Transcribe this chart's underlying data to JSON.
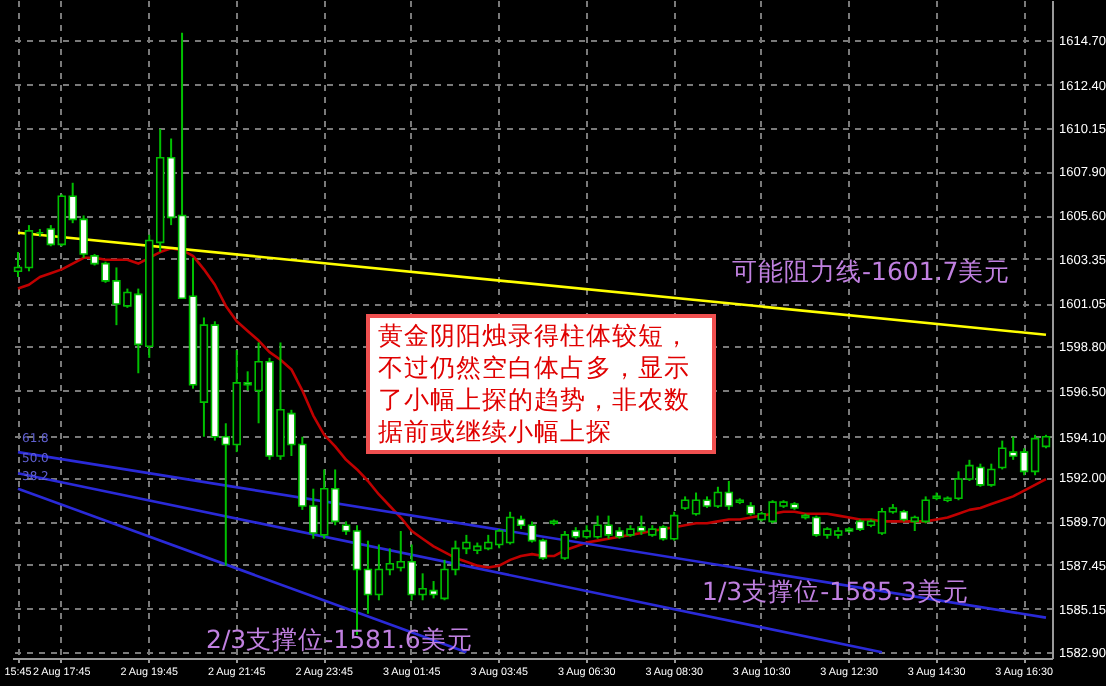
{
  "chart_data": {
    "type": "candlestick",
    "categories": [
      "15:45",
      null,
      null,
      null,
      "2 Aug 17:45",
      null,
      null,
      null,
      null,
      null,
      null,
      null,
      "2 Aug 19:45",
      null,
      null,
      null,
      null,
      null,
      null,
      null,
      "2 Aug 21:45",
      null,
      null,
      null,
      null,
      null,
      null,
      null,
      "2 Aug 23:45",
      null,
      null,
      null,
      null,
      null,
      null,
      null,
      "3 Aug 01:45",
      null,
      null,
      null,
      null,
      null,
      null,
      null,
      "3 Aug 03:45",
      null,
      null,
      null,
      null,
      null,
      null,
      null,
      "3 Aug 06:30",
      null,
      null,
      null,
      null,
      null,
      null,
      null,
      "3 Aug 08:30",
      null,
      null,
      null,
      null,
      null,
      null,
      null,
      "3 Aug 10:30",
      null,
      null,
      null,
      null,
      null,
      null,
      null,
      "3 Aug 12:30",
      null,
      null,
      null,
      null,
      null,
      null,
      null,
      "3 Aug 14:30",
      null,
      null,
      null,
      null,
      null,
      null,
      null,
      "3 Aug 16:30",
      null,
      null
    ],
    "ohlc": [
      [
        1602.7,
        1603.7,
        1602.4,
        1602.9
      ],
      [
        1602.9,
        1605.1,
        1602.7,
        1604.8
      ],
      [
        1604.7,
        1604.9,
        1604.5,
        1604.7
      ],
      [
        1604.9,
        1605.1,
        1604.0,
        1604.1
      ],
      [
        1604.1,
        1606.7,
        1604.0,
        1606.6
      ],
      [
        1606.6,
        1607.3,
        1605.2,
        1605.4
      ],
      [
        1605.4,
        1605.6,
        1603.4,
        1603.6
      ],
      [
        1603.5,
        1603.6,
        1603.0,
        1603.1
      ],
      [
        1603.1,
        1603.2,
        1602.1,
        1602.2
      ],
      [
        1602.2,
        1602.9,
        1599.9,
        1601.0
      ],
      [
        1600.9,
        1601.8,
        1600.8,
        1601.6
      ],
      [
        1601.5,
        1601.8,
        1597.4,
        1598.9
      ],
      [
        1598.8,
        1604.6,
        1598.2,
        1604.3
      ],
      [
        1604.2,
        1610.1,
        1603.7,
        1608.6
      ],
      [
        1608.6,
        1609.6,
        1605.1,
        1605.5
      ],
      [
        1605.6,
        1615.1,
        1601.3,
        1601.3
      ],
      [
        1601.4,
        1603.4,
        1596.6,
        1596.8
      ],
      [
        1595.9,
        1600.3,
        1594.1,
        1599.9
      ],
      [
        1599.9,
        1600.1,
        1593.9,
        1594.1
      ],
      [
        1594.1,
        1594.8,
        1587.4,
        1593.7
      ],
      [
        1593.7,
        1598.6,
        1593.3,
        1596.9
      ],
      [
        1596.9,
        1597.5,
        1596.5,
        1596.8
      ],
      [
        1596.5,
        1599.0,
        1594.8,
        1598.0
      ],
      [
        1598.0,
        1598.2,
        1592.9,
        1593.1
      ],
      [
        1593.1,
        1599.0,
        1592.9,
        1595.5
      ],
      [
        1595.3,
        1595.5,
        1593.1,
        1593.7
      ],
      [
        1593.7,
        1594.1,
        1590.3,
        1590.5
      ],
      [
        1590.5,
        1591.4,
        1588.8,
        1589.1
      ],
      [
        1589.0,
        1592.4,
        1588.8,
        1591.4
      ],
      [
        1591.4,
        1592.4,
        1589.5,
        1589.7
      ],
      [
        1589.5,
        1589.7,
        1589.0,
        1589.2
      ],
      [
        1589.2,
        1589.5,
        1583.8,
        1587.2
      ],
      [
        1587.2,
        1588.7,
        1584.9,
        1585.9
      ],
      [
        1585.9,
        1588.5,
        1585.6,
        1587.2
      ],
      [
        1587.2,
        1588.3,
        1586.9,
        1587.5
      ],
      [
        1587.3,
        1589.2,
        1587.1,
        1587.6
      ],
      [
        1587.6,
        1588.5,
        1585.6,
        1585.9
      ],
      [
        1585.9,
        1587.0,
        1585.6,
        1586.2
      ],
      [
        1586.1,
        1586.6,
        1585.7,
        1585.9
      ],
      [
        1585.7,
        1587.7,
        1585.6,
        1587.2
      ],
      [
        1587.2,
        1588.7,
        1586.9,
        1588.3
      ],
      [
        1588.3,
        1589.0,
        1588.0,
        1588.6
      ],
      [
        1588.2,
        1588.6,
        1588.0,
        1588.4
      ],
      [
        1588.3,
        1589.0,
        1588.2,
        1588.6
      ],
      [
        1588.5,
        1589.3,
        1588.3,
        1589.2
      ],
      [
        1588.6,
        1590.2,
        1588.5,
        1589.9
      ],
      [
        1589.8,
        1590.0,
        1589.3,
        1589.5
      ],
      [
        1589.5,
        1589.7,
        1588.6,
        1588.7
      ],
      [
        1588.7,
        1588.8,
        1587.7,
        1587.8
      ],
      [
        1589.6,
        1589.8,
        1589.5,
        1589.7
      ],
      [
        1587.8,
        1589.2,
        1587.7,
        1589.0
      ],
      [
        1589.2,
        1589.4,
        1588.8,
        1588.9
      ],
      [
        1588.9,
        1589.5,
        1588.8,
        1589.2
      ],
      [
        1588.9,
        1590.0,
        1588.8,
        1589.5
      ],
      [
        1589.5,
        1590.0,
        1588.8,
        1589.0
      ],
      [
        1589.2,
        1589.4,
        1588.8,
        1588.9
      ],
      [
        1589.0,
        1589.5,
        1588.9,
        1589.3
      ],
      [
        1589.4,
        1590.0,
        1589.0,
        1589.2
      ],
      [
        1589.0,
        1589.5,
        1588.9,
        1589.3
      ],
      [
        1589.4,
        1589.5,
        1588.7,
        1588.8
      ],
      [
        1588.8,
        1590.2,
        1588.7,
        1590.0
      ],
      [
        1590.4,
        1591.0,
        1590.3,
        1590.8
      ],
      [
        1590.1,
        1591.2,
        1590.0,
        1590.8
      ],
      [
        1590.8,
        1591.0,
        1590.4,
        1590.5
      ],
      [
        1590.5,
        1591.5,
        1590.4,
        1591.2
      ],
      [
        1591.2,
        1591.8,
        1590.3,
        1590.5
      ],
      [
        1590.7,
        1590.9,
        1590.6,
        1590.8
      ],
      [
        1590.5,
        1590.7,
        1590.0,
        1590.1
      ],
      [
        1589.8,
        1590.2,
        1589.7,
        1590.1
      ],
      [
        1589.7,
        1590.8,
        1589.6,
        1590.7
      ],
      [
        1590.5,
        1590.8,
        1590.4,
        1590.7
      ],
      [
        1590.6,
        1590.7,
        1590.3,
        1590.4
      ],
      [
        1589.9,
        1590.1,
        1589.8,
        1590.0
      ],
      [
        1589.9,
        1590.0,
        1588.9,
        1589.0
      ],
      [
        1589.0,
        1589.4,
        1588.8,
        1589.3
      ],
      [
        1589.0,
        1589.4,
        1588.8,
        1589.2
      ],
      [
        1589.3,
        1589.4,
        1589.1,
        1589.2
      ],
      [
        1589.7,
        1589.8,
        1589.2,
        1589.3
      ],
      [
        1589.5,
        1589.8,
        1589.4,
        1589.7
      ],
      [
        1589.1,
        1590.4,
        1589.0,
        1590.2
      ],
      [
        1590.2,
        1590.6,
        1590.1,
        1590.4
      ],
      [
        1590.2,
        1590.3,
        1589.7,
        1589.8
      ],
      [
        1589.7,
        1590.0,
        1589.2,
        1589.9
      ],
      [
        1589.7,
        1591.0,
        1589.6,
        1590.8
      ],
      [
        1590.9,
        1591.2,
        1590.8,
        1591.0
      ],
      [
        1590.8,
        1591.0,
        1590.7,
        1590.9
      ],
      [
        1590.9,
        1592.3,
        1590.8,
        1591.9
      ],
      [
        1591.9,
        1592.9,
        1591.8,
        1592.6
      ],
      [
        1592.5,
        1592.7,
        1591.5,
        1591.6
      ],
      [
        1591.6,
        1592.7,
        1591.5,
        1592.4
      ],
      [
        1592.5,
        1593.9,
        1592.4,
        1593.5
      ],
      [
        1593.3,
        1594.1,
        1592.9,
        1593.1
      ],
      [
        1593.3,
        1593.5,
        1592.1,
        1592.3
      ],
      [
        1592.3,
        1594.2,
        1592.1,
        1594.0
      ],
      [
        1593.6,
        1594.2,
        1593.5,
        1594.1
      ]
    ],
    "series": [
      {
        "type": "line",
        "color": "#c00000",
        "values": [
          1601.8,
          1602.0,
          1602.4,
          1602.6,
          1602.8,
          1603.1,
          1603.4,
          1603.4,
          1603.3,
          1603.3,
          1603.3,
          1603.1,
          1603.4,
          1603.7,
          1603.9,
          1603.8,
          1603.5,
          1602.8,
          1602.0,
          1600.9,
          1600.1,
          1599.6,
          1599.1,
          1598.5,
          1598.1,
          1597.6,
          1596.5,
          1595.2,
          1594.2,
          1593.6,
          1592.9,
          1592.4,
          1591.8,
          1591.1,
          1590.5,
          1589.9,
          1589.2,
          1588.8,
          1588.4,
          1588.1,
          1587.8,
          1587.6,
          1587.4,
          1587.3,
          1587.4,
          1587.7,
          1587.9,
          1588.0,
          1587.9,
          1587.9,
          1588.2,
          1588.4,
          1588.6,
          1588.7,
          1588.8,
          1588.9,
          1589.0,
          1589.1,
          1589.2,
          1589.3,
          1589.4,
          1589.5,
          1589.6,
          1589.6,
          1589.7,
          1589.8,
          1589.8,
          1589.9,
          1590.0,
          1590.1,
          1590.2,
          1590.2,
          1590.1,
          1590.1,
          1590.1,
          1590.0,
          1589.9,
          1589.8,
          1589.8,
          1589.7,
          1589.7,
          1589.7,
          1589.7,
          1589.7,
          1589.8,
          1589.9,
          1590.1,
          1590.3,
          1590.4,
          1590.6,
          1590.8,
          1591.0,
          1591.3,
          1591.6,
          1591.9
        ]
      },
      {
        "type": "line",
        "color": "#ffff00",
        "values": [
          1604.7,
          null,
          null,
          null,
          null,
          null,
          null,
          null,
          null,
          null,
          null,
          null,
          null,
          null,
          null,
          null,
          null,
          null,
          null,
          null,
          null,
          null,
          null,
          null,
          null,
          null,
          null,
          null,
          null,
          null,
          null,
          null,
          null,
          null,
          null,
          null,
          null,
          null,
          null,
          null,
          null,
          null,
          null,
          null,
          null,
          null,
          null,
          null,
          null,
          null,
          null,
          null,
          null,
          null,
          null,
          null,
          null,
          null,
          null,
          null,
          null,
          null,
          null,
          null,
          null,
          null,
          null,
          null,
          null,
          null,
          null,
          null,
          null,
          null,
          null,
          null,
          null,
          null,
          null,
          null,
          null,
          null,
          null,
          null,
          null,
          null,
          null,
          null,
          null,
          null,
          null,
          null,
          null,
          null,
          1599.4
        ]
      },
      {
        "type": "line",
        "color": "#2a2ad8",
        "values": [
          1593.3,
          null,
          null,
          null,
          null,
          null,
          null,
          null,
          null,
          null,
          null,
          null,
          null,
          null,
          null,
          null,
          null,
          null,
          null,
          null,
          null,
          null,
          null,
          null,
          null,
          null,
          null,
          null,
          null,
          null,
          null,
          null,
          null,
          null,
          null,
          null,
          null,
          null,
          null,
          null,
          null,
          null,
          null,
          null,
          null,
          null,
          null,
          null,
          null,
          null,
          null,
          null,
          null,
          null,
          null,
          null,
          null,
          null,
          null,
          null,
          null,
          null,
          null,
          null,
          null,
          null,
          null,
          null,
          null,
          null,
          null,
          null,
          null,
          null,
          null,
          null,
          null,
          null,
          null,
          null,
          null,
          null,
          null,
          null,
          null,
          null,
          null,
          null,
          null,
          null,
          null,
          null,
          null,
          null,
          1584.7
        ]
      },
      {
        "type": "line",
        "color": "#2a2ad8",
        "values": [
          1592.2,
          null,
          null,
          null,
          null,
          null,
          null,
          null,
          null,
          null,
          null,
          null,
          null,
          null,
          null,
          null,
          null,
          null,
          null,
          null,
          null,
          null,
          null,
          null,
          null,
          null,
          null,
          null,
          null,
          null,
          null,
          null,
          null,
          null,
          null,
          null,
          null,
          null,
          null,
          null,
          null,
          null,
          null,
          null,
          null,
          null,
          null,
          null,
          null,
          null,
          null,
          null,
          null,
          null,
          null,
          null,
          null,
          null,
          null,
          null,
          null,
          null,
          null,
          null,
          null,
          null,
          null,
          null,
          null,
          null,
          null,
          null,
          null,
          null,
          null,
          null,
          null,
          null,
          null,
          1582.9,
          null,
          null,
          null,
          null,
          null,
          null,
          null,
          null,
          null,
          null,
          null,
          null,
          null,
          null,
          null
        ]
      },
      {
        "type": "line",
        "color": "#2a2ad8",
        "values": [
          1591.4,
          null,
          null,
          null,
          null,
          null,
          null,
          null,
          null,
          null,
          null,
          null,
          null,
          null,
          null,
          null,
          null,
          null,
          null,
          null,
          null,
          null,
          null,
          null,
          null,
          null,
          null,
          null,
          null,
          null,
          null,
          null,
          null,
          null,
          null,
          null,
          null,
          null,
          null,
          null,
          null,
          1582.9,
          null,
          null,
          null,
          null,
          null,
          null,
          null,
          null,
          null,
          null,
          null,
          null,
          null,
          null,
          null,
          null,
          null,
          null,
          null,
          null,
          null,
          null,
          null,
          null,
          null,
          null,
          null,
          null,
          null,
          null,
          null,
          null,
          null,
          null,
          null,
          null,
          null,
          null,
          null,
          null,
          null,
          null,
          null,
          null,
          null,
          null,
          null,
          null,
          null,
          null,
          null,
          null,
          null
        ]
      }
    ],
    "ylim": [
      1582.6,
      1616.8
    ],
    "yticks": [
      {
        "value": 1582.9,
        "label": "1582.90"
      },
      {
        "value": 1585.15,
        "label": "1585.15"
      },
      {
        "value": 1587.45,
        "label": "1587.45"
      },
      {
        "value": 1589.7,
        "label": "1589.70"
      },
      {
        "value": 1592,
        "label": "1592.00"
      },
      {
        "value": 1594.1,
        "label": "1594.10"
      },
      {
        "value": 1596.5,
        "label": "1596.50"
      },
      {
        "value": 1598.8,
        "label": "1598.80"
      },
      {
        "value": 1601.05,
        "label": "1601.05"
      },
      {
        "value": 1603.35,
        "label": "1603.35"
      },
      {
        "value": 1605.6,
        "label": "1605.60"
      },
      {
        "value": 1607.9,
        "label": "1607.90"
      },
      {
        "value": 1610.15,
        "label": "1610.15"
      },
      {
        "value": 1612.4,
        "label": "1612.40"
      },
      {
        "value": 1614.7,
        "label": "1614.70"
      }
    ],
    "grid": true,
    "annotations": [
      "黄金阴阳烛录得柱体较短，不过仍然空白体占多，显示了小幅上探的趋势，非农数据前或继续小幅上探",
      "可能阻力线-1601.7美元",
      "1/3支撑位-1585.3美元",
      "2/3支撑位-1581.6美元",
      "61.8",
      "50.0",
      "38.2"
    ]
  }
}
